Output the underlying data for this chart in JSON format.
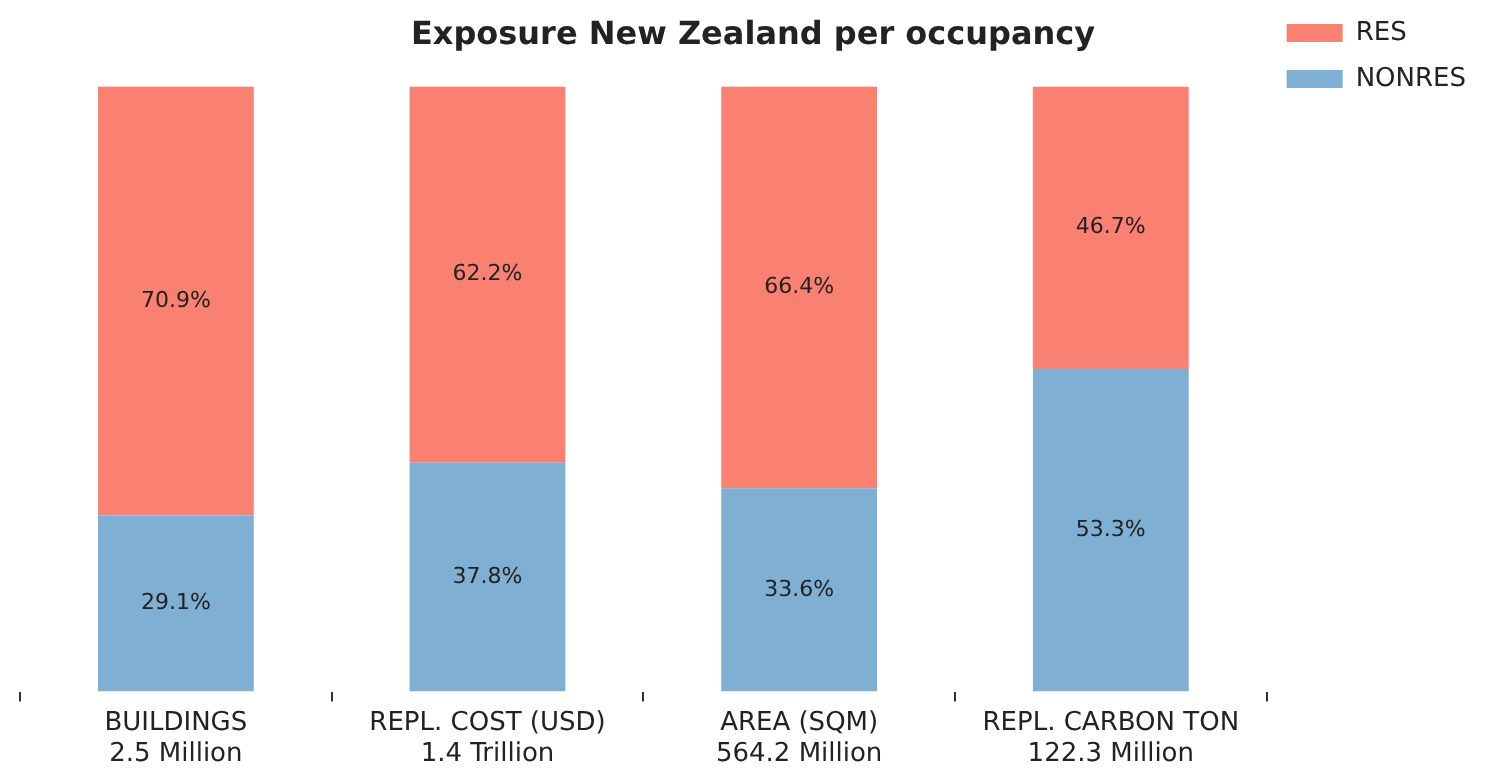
{
  "chart_data": {
    "type": "bar",
    "title": "Exposure New Zealand per occupancy",
    "stacked": true,
    "categories": [
      "BUILDINGS\n2.5 Million",
      "REPL. COST (USD)\n1.4 Trillion",
      "AREA (SQM)\n564.2 Million",
      "REPL. CARBON TON\n122.3 Million"
    ],
    "series": [
      {
        "name": "NONRES",
        "color": "#7fb0d3",
        "values": [
          29.1,
          37.8,
          33.6,
          53.3
        ],
        "value_labels": [
          "29.1%",
          "37.8%",
          "33.6%",
          "53.3%"
        ]
      },
      {
        "name": "RES",
        "color": "#fa8072",
        "values": [
          70.9,
          62.2,
          66.4,
          46.7
        ],
        "value_labels": [
          "70.9%",
          "62.2%",
          "66.4%",
          "46.7%"
        ]
      }
    ],
    "ylim": [
      0,
      100
    ],
    "tick_labels": "x",
    "legend": "top right",
    "grid": false
  }
}
